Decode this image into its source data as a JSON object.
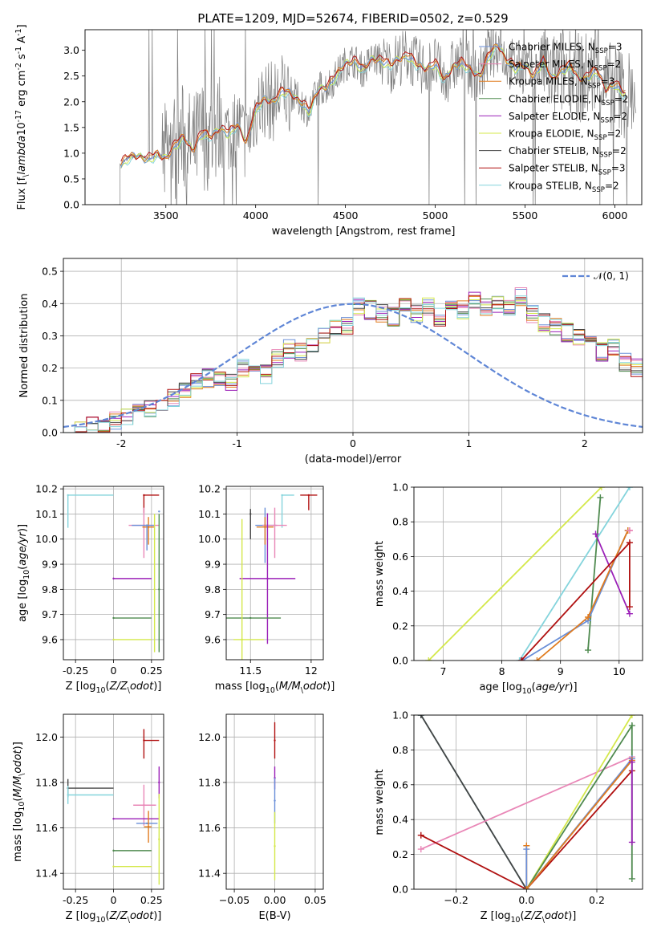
{
  "figure_title": "PLATE=1209, MJD=52674, FIBERID=0502, z=0.529",
  "colors": {
    "Chabrier MILES": "#6a8fd8",
    "Salpeter MILES": "#e987b7",
    "Kroupa MILES": "#e07b1e",
    "Chabrier ELODIE": "#4f8a4f",
    "Salpeter ELODIE": "#9b20b8",
    "Kroupa ELODIE": "#d4e84a",
    "Chabrier STELIB": "#444444",
    "Salpeter STELIB": "#b01010",
    "Kroupa STELIB": "#84d4dc",
    "data": "#7f7f7f",
    "normal": "#5f86d6"
  },
  "chart_data": [
    {
      "id": "spectrum",
      "type": "line",
      "xlabel": "wavelength [Angstrom, rest frame]",
      "ylabel": "Flux [f$_\\lambda$10$^{-17}$ erg cm$^{-2}$ s$^{-1}$ A$^{-1}$]",
      "xlim": [
        3050,
        6150
      ],
      "ylim": [
        0,
        3.4
      ],
      "xticks": [
        3500,
        4000,
        4500,
        5000,
        5500,
        6000
      ],
      "yticks": [
        0.0,
        0.5,
        1.0,
        1.5,
        2.0,
        2.5,
        3.0
      ],
      "legend_position": "upper right",
      "legend": [
        {
          "name": "Chabrier MILES",
          "nssp": 3
        },
        {
          "name": "Salpeter MILES",
          "nssp": 2
        },
        {
          "name": "Kroupa MILES",
          "nssp": 3
        },
        {
          "name": "Chabrier ELODIE",
          "nssp": 2
        },
        {
          "name": "Salpeter ELODIE",
          "nssp": 2
        },
        {
          "name": "Kroupa ELODIE",
          "nssp": 2
        },
        {
          "name": "Chabrier STELIB",
          "nssp": 2
        },
        {
          "name": "Salpeter STELIB",
          "nssp": 3
        },
        {
          "name": "Kroupa STELIB",
          "nssp": 2
        }
      ],
      "model_x": [
        3250,
        3300,
        3350,
        3400,
        3450,
        3500,
        3550,
        3600,
        3650,
        3700,
        3750,
        3800,
        3850,
        3900,
        3950,
        4000,
        4050,
        4100,
        4150,
        4200,
        4250,
        4300,
        4350,
        4400,
        4450,
        4500,
        4550,
        4600,
        4650,
        4700,
        4750,
        4800,
        4850,
        4900,
        4950,
        5000,
        5050,
        5100,
        5150,
        5200,
        5250,
        5300,
        5350,
        5400,
        5450,
        5500,
        5550,
        5600,
        5650,
        5700,
        5750,
        5800,
        5850,
        5900,
        5950,
        6000,
        6050
      ],
      "model_y": [
        0.8,
        0.92,
        0.95,
        0.88,
        0.97,
        0.9,
        1.15,
        1.3,
        1.05,
        1.4,
        1.3,
        1.5,
        1.38,
        1.55,
        1.2,
        1.85,
        2.05,
        2.0,
        2.2,
        2.15,
        2.0,
        1.8,
        2.25,
        2.3,
        2.5,
        2.75,
        2.8,
        2.6,
        2.85,
        2.8,
        2.7,
        2.85,
        2.9,
        2.7,
        2.65,
        2.75,
        2.4,
        2.7,
        2.75,
        2.6,
        2.5,
        2.9,
        3.1,
        2.8,
        2.65,
        2.7,
        2.5,
        2.8,
        2.45,
        2.6,
        2.7,
        2.45,
        2.5,
        2.6,
        2.25,
        2.35,
        2.15
      ]
    },
    {
      "id": "residuals",
      "type": "line",
      "xlabel": "(data-model)/error",
      "ylabel": "Normed distribution",
      "xlim": [
        -2.5,
        2.5
      ],
      "ylim": [
        0,
        0.54
      ],
      "xticks": [
        -2,
        -1,
        0,
        1,
        2
      ],
      "yticks": [
        0.0,
        0.1,
        0.2,
        0.3,
        0.4,
        0.5
      ],
      "legend_position": "upper right",
      "normal_label": "$\\mathcal{N}(0,1)$",
      "bin_width": 0.1,
      "hist_left_edge": -2.5,
      "hist": [
        0.01,
        0.01,
        0.02,
        0.03,
        0.04,
        0.05,
        0.06,
        0.07,
        0.09,
        0.11,
        0.13,
        0.16,
        0.17,
        0.17,
        0.16,
        0.2,
        0.21,
        0.18,
        0.23,
        0.26,
        0.25,
        0.27,
        0.3,
        0.32,
        0.33,
        0.39,
        0.38,
        0.37,
        0.36,
        0.4,
        0.37,
        0.39,
        0.36,
        0.38,
        0.38,
        0.41,
        0.39,
        0.4,
        0.39,
        0.42,
        0.37,
        0.34,
        0.33,
        0.31,
        0.3,
        0.27,
        0.25,
        0.26,
        0.22,
        0.2,
        0.19,
        0.17,
        0.15,
        0.16,
        0.12,
        0.11,
        0.09,
        0.07,
        0.06,
        0.05
      ]
    },
    {
      "id": "age-vs-Z",
      "type": "scatter",
      "xlabel": "Z [log$_{10}$($Z/Z_\\odot$)]",
      "ylabel": "age  [log$_{10}$($age/yr$)]",
      "xlim": [
        -0.33,
        0.33
      ],
      "ylim": [
        9.52,
        10.21
      ],
      "xticks": [
        -0.25,
        0.0,
        0.25
      ],
      "yticks": [
        9.6,
        9.7,
        9.8,
        9.9,
        10.0,
        10.1,
        10.2
      ],
      "points": [
        {
          "model": "Kroupa STELIB",
          "x": -0.3,
          "y": 10.175,
          "xerr": [
            0.0,
            0.3
          ],
          "yerr": [
            0.13,
            0.0
          ]
        },
        {
          "model": "Salpeter STELIB",
          "x": 0.2,
          "y": 10.175,
          "xerr": [
            0.0,
            0.1
          ],
          "yerr": [
            0.07,
            0.0
          ]
        },
        {
          "model": "Chabrier MILES",
          "x": 0.3,
          "y": 10.11,
          "xerr": [
            0.0,
            0.0
          ],
          "yerr": [
            0.0,
            0.0
          ]
        },
        {
          "model": "Salpeter MILES",
          "x": 0.2,
          "y": 10.055,
          "xerr": [
            0.1,
            0.1
          ],
          "yerr": [
            0.13,
            0.07
          ]
        },
        {
          "model": "Kroupa MILES",
          "x": 0.23,
          "y": 10.048,
          "xerr": [
            0.04,
            0.04
          ],
          "yerr": [
            0.07,
            0.04
          ]
        },
        {
          "model": "Chabrier MILES",
          "x": 0.22,
          "y": 10.055,
          "xerr": [
            0.1,
            0.05
          ],
          "yerr": [
            0.1,
            0.0
          ]
        },
        {
          "model": "Salpeter ELODIE",
          "x": 0.0,
          "y": 9.843,
          "xerr": [
            0.0,
            0.25
          ],
          "yerr": [
            0.0,
            0.0
          ]
        },
        {
          "model": "Chabrier ELODIE",
          "x": 0.0,
          "y": 9.686,
          "xerr": [
            0.0,
            0.25
          ],
          "yerr": [
            0.0,
            0.0
          ]
        },
        {
          "model": "Kroupa ELODIE",
          "x": 0.0,
          "y": 9.6,
          "xerr": [
            0.0,
            0.25
          ],
          "yerr": [
            0.0,
            0.0
          ]
        },
        {
          "model": "Kroupa ELODIE",
          "x": 0.27,
          "y": 9.8,
          "xerr": [
            0.0,
            0.0
          ],
          "yerr": [
            0.25,
            0.3
          ]
        },
        {
          "model": "Chabrier ELODIE",
          "x": 0.3,
          "y": 9.8,
          "xerr": [
            0.0,
            0.0
          ],
          "yerr": [
            0.25,
            0.3
          ]
        }
      ]
    },
    {
      "id": "age-vs-mass",
      "type": "scatter",
      "xlabel": "mass [log$_{10}$($M/M_\\odot$)]",
      "ylabel": "",
      "xlim": [
        11.3,
        12.1
      ],
      "ylim": [
        9.52,
        10.21
      ],
      "xticks": [
        11.5,
        12.0
      ],
      "yticks": [
        9.6,
        9.7,
        9.8,
        9.9,
        10.0,
        10.1,
        10.2
      ],
      "points": [
        {
          "model": "Kroupa STELIB",
          "x": 11.76,
          "y": 10.175,
          "xerr": [
            0.0,
            0.1
          ],
          "yerr": [
            0.13,
            0.0
          ]
        },
        {
          "model": "Salpeter STELIB",
          "x": 11.98,
          "y": 10.175,
          "xerr": [
            0.07,
            0.07
          ],
          "yerr": [
            0.06,
            0.0
          ]
        },
        {
          "model": "Chabrier MILES",
          "x": 11.62,
          "y": 10.055,
          "xerr": [
            0.08,
            0.1
          ],
          "yerr": [
            0.15,
            0.07
          ]
        },
        {
          "model": "Salpeter MILES",
          "x": 11.7,
          "y": 10.055,
          "xerr": [
            0.1,
            0.1
          ],
          "yerr": [
            0.13,
            0.07
          ]
        },
        {
          "model": "Kroupa MILES",
          "x": 11.62,
          "y": 10.048,
          "xerr": [
            0.07,
            0.07
          ],
          "yerr": [
            0.07,
            0.04
          ]
        },
        {
          "model": "Chabrier STELIB",
          "x": 11.5,
          "y": 10.1,
          "xerr": [
            0.0,
            0.0
          ],
          "yerr": [
            0.1,
            0.02
          ]
        },
        {
          "model": "Salpeter ELODIE",
          "x": 11.64,
          "y": 9.843,
          "xerr": [
            0.23,
            0.23
          ],
          "yerr": [
            0.26,
            0.26
          ]
        },
        {
          "model": "Chabrier ELODIE",
          "x": 11.5,
          "y": 9.686,
          "xerr": [
            0.25,
            0.25
          ],
          "yerr": [
            0.0,
            0.0
          ]
        },
        {
          "model": "Kroupa ELODIE",
          "x": 11.43,
          "y": 9.6,
          "xerr": [
            0.07,
            0.18
          ],
          "yerr": [
            0.1,
            0.48
          ]
        }
      ]
    },
    {
      "id": "weight-vs-age",
      "type": "line",
      "xlabel": "age  [log$_{10}$($age/yr$)]",
      "ylabel": "mass weight",
      "xlim": [
        6.5,
        10.4
      ],
      "ylim": [
        0,
        1.0
      ],
      "xticks": [
        7,
        8,
        9,
        10
      ],
      "yticks": [
        0.0,
        0.2,
        0.4,
        0.6,
        0.8,
        1.0
      ],
      "series": [
        {
          "model": "Kroupa ELODIE",
          "x": [
            6.75,
            9.7
          ],
          "y": [
            0.0,
            1.0
          ]
        },
        {
          "model": "Kroupa STELIB",
          "x": [
            8.3,
            10.18
          ],
          "y": [
            0.0,
            1.0
          ]
        },
        {
          "model": "Chabrier ELODIE",
          "x": [
            9.47,
            9.68
          ],
          "y": [
            0.06,
            0.94
          ]
        },
        {
          "model": "Salpeter ELODIE",
          "x": [
            9.6,
            10.18
          ],
          "y": [
            0.73,
            0.27
          ]
        },
        {
          "model": "Chabrier MILES",
          "x": [
            8.35,
            9.47,
            10.15
          ],
          "y": [
            0.0,
            0.23,
            0.75
          ]
        },
        {
          "model": "Kroupa MILES",
          "x": [
            8.6,
            9.47,
            10.15
          ],
          "y": [
            0.0,
            0.25,
            0.75
          ]
        },
        {
          "model": "Salpeter MILES",
          "x": [
            10.18,
            10.18
          ],
          "y": [
            0.75,
            0.75
          ]
        },
        {
          "model": "Salpeter STELIB",
          "x": [
            8.33,
            10.18,
            10.18
          ],
          "y": [
            0.0,
            0.68,
            0.31
          ]
        }
      ]
    },
    {
      "id": "mass-vs-Z",
      "type": "scatter",
      "xlabel": "Z [log$_{10}$($Z/Z_\\odot$)]",
      "ylabel": "mass [log$_{10}$($M/M_\\odot$)]",
      "xlim": [
        -0.33,
        0.33
      ],
      "ylim": [
        11.33,
        12.1
      ],
      "xticks": [
        -0.25,
        0.0,
        0.25
      ],
      "yticks": [
        11.4,
        11.6,
        11.8,
        12.0
      ],
      "points": [
        {
          "model": "Salpeter STELIB",
          "x": 0.2,
          "y": 11.985,
          "xerr": [
            0.0,
            0.1
          ],
          "yerr": [
            0.08,
            0.05
          ]
        },
        {
          "model": "Chabrier STELIB",
          "x": -0.3,
          "y": 11.775,
          "xerr": [
            0.0,
            0.3
          ],
          "yerr": [
            0.04,
            0.04
          ]
        },
        {
          "model": "Kroupa STELIB",
          "x": -0.3,
          "y": 11.745,
          "xerr": [
            0.0,
            0.3
          ],
          "yerr": [
            0.04,
            0.04
          ]
        },
        {
          "model": "Salpeter MILES",
          "x": 0.2,
          "y": 11.7,
          "xerr": [
            0.07,
            0.08
          ],
          "yerr": [
            0.09,
            0.09
          ]
        },
        {
          "model": "Salpeter ELODIE",
          "x": 0.0,
          "y": 11.64,
          "xerr": [
            0.0,
            0.3
          ],
          "yerr": [
            0.0,
            0.0
          ]
        },
        {
          "model": "Chabrier MILES",
          "x": 0.22,
          "y": 11.62,
          "xerr": [
            0.07,
            0.07
          ],
          "yerr": [
            0.0,
            0.0
          ]
        },
        {
          "model": "Kroupa MILES",
          "x": 0.23,
          "y": 11.605,
          "xerr": [
            0.03,
            0.02
          ],
          "yerr": [
            0.07,
            0.07
          ]
        },
        {
          "model": "Chabrier ELODIE",
          "x": 0.0,
          "y": 11.5,
          "xerr": [
            0.0,
            0.25
          ],
          "yerr": [
            0.0,
            0.0
          ]
        },
        {
          "model": "Kroupa ELODIE",
          "x": 0.0,
          "y": 11.43,
          "xerr": [
            0.0,
            0.25
          ],
          "yerr": [
            0.0,
            0.0
          ]
        },
        {
          "model": "Salpeter ELODIE",
          "x": 0.3,
          "y": 11.8,
          "xerr": [
            0.0,
            0.0
          ],
          "yerr": [
            0.07,
            0.07
          ]
        },
        {
          "model": "Kroupa ELODIE",
          "x": 0.3,
          "y": 11.55,
          "xerr": [
            0.0,
            0.0
          ],
          "yerr": [
            0.2,
            0.2
          ]
        }
      ]
    },
    {
      "id": "mass-vs-EBV",
      "type": "scatter",
      "xlabel": "E(B-V)",
      "ylabel": "",
      "xlim": [
        -0.06,
        0.06
      ],
      "ylim": [
        11.33,
        12.1
      ],
      "xticks": [
        -0.05,
        0.0,
        0.05
      ],
      "xticklabels": [
        "−0.05",
        "0.00",
        "0.05"
      ],
      "yticks": [
        11.4,
        11.6,
        11.8,
        12.0
      ],
      "points": [
        {
          "model": "Salpeter STELIB",
          "x": 0.0,
          "y": 11.985,
          "xerr": [
            0.0,
            0.0
          ],
          "yerr": [
            0.08,
            0.08
          ]
        },
        {
          "model": "Salpeter ELODIE",
          "x": 0.0,
          "y": 11.82,
          "xerr": [
            0.0,
            0.0
          ],
          "yerr": [
            0.05,
            0.05
          ]
        },
        {
          "model": "Chabrier MILES",
          "x": 0.0,
          "y": 11.72,
          "xerr": [
            0.0,
            0.0
          ],
          "yerr": [
            0.1,
            0.1
          ]
        },
        {
          "model": "Kroupa ELODIE",
          "x": 0.0,
          "y": 11.52,
          "xerr": [
            0.0,
            0.0
          ],
          "yerr": [
            0.15,
            0.15
          ]
        }
      ]
    },
    {
      "id": "weight-vs-Z",
      "type": "line",
      "xlabel": "Z [log$_{10}$($Z/Z_\\odot$)]",
      "ylabel": "mass weight",
      "xlim": [
        -0.32,
        0.33
      ],
      "ylim": [
        0,
        1.0
      ],
      "xticks": [
        -0.2,
        0.0,
        0.2
      ],
      "xticklabels": [
        "−0.2",
        "0.0",
        "0.2"
      ],
      "yticks": [
        0.0,
        0.2,
        0.4,
        0.6,
        0.8,
        1.0
      ],
      "series": [
        {
          "model": "Kroupa STELIB",
          "x": [
            -0.3,
            0.0
          ],
          "y": [
            1.0,
            0.0
          ]
        },
        {
          "model": "Chabrier STELIB",
          "x": [
            -0.3,
            0.0
          ],
          "y": [
            1.0,
            0.0
          ]
        },
        {
          "model": "Salpeter MILES",
          "x": [
            -0.3,
            0.3
          ],
          "y": [
            0.23,
            0.76
          ]
        },
        {
          "model": "Salpeter STELIB",
          "x": [
            -0.3,
            0.0,
            0.3
          ],
          "y": [
            0.31,
            0.0,
            0.68
          ]
        },
        {
          "model": "Kroupa MILES",
          "x": [
            0.0,
            0.0
          ],
          "y": [
            0.25,
            0.0
          ]
        },
        {
          "model": "Chabrier MILES",
          "x": [
            0.0,
            0.0
          ],
          "y": [
            0.23,
            0.0
          ]
        },
        {
          "model": "Kroupa ELODIE",
          "x": [
            0.0,
            0.3
          ],
          "y": [
            0.0,
            1.0
          ]
        },
        {
          "model": "Chabrier ELODIE",
          "x": [
            0.0,
            0.3,
            0.3
          ],
          "y": [
            0.0,
            0.94,
            0.06
          ]
        },
        {
          "model": "Chabrier MILES",
          "x": [
            0.0,
            0.3
          ],
          "y": [
            0.0,
            0.75
          ]
        },
        {
          "model": "Kroupa MILES",
          "x": [
            0.0,
            0.3
          ],
          "y": [
            0.0,
            0.74
          ]
        },
        {
          "model": "Salpeter ELODIE",
          "x": [
            0.3,
            0.3
          ],
          "y": [
            0.73,
            0.27
          ]
        }
      ]
    }
  ]
}
